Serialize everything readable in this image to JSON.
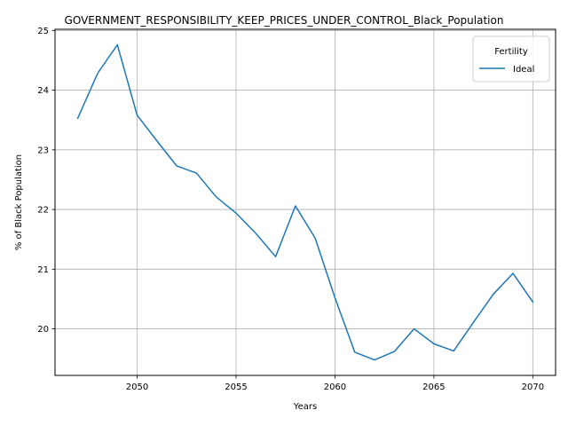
{
  "chart_data": {
    "type": "line",
    "title": "GOVERNMENT_RESPONSIBILITY_KEEP_PRICES_UNDER_CONTROL_Black_Population",
    "xlabel": "Years",
    "ylabel": "% of Black Population",
    "xlim": [
      2045.85,
      2071.15
    ],
    "ylim": [
      19.22,
      25.02
    ],
    "xticks": [
      2050,
      2055,
      2060,
      2065,
      2070
    ],
    "yticks": [
      20,
      21,
      22,
      23,
      24,
      25
    ],
    "grid": true,
    "legend": {
      "title": "Fertility",
      "position": "top-right"
    },
    "series": [
      {
        "name": "Ideal",
        "color": "#1f77b4",
        "x": [
          2047,
          2048,
          2049,
          2050,
          2051,
          2052,
          2053,
          2054,
          2055,
          2056,
          2057,
          2058,
          2059,
          2060,
          2061,
          2062,
          2063,
          2064,
          2065,
          2066,
          2067,
          2068,
          2069,
          2070
        ],
        "y": [
          23.53,
          24.28,
          24.76,
          23.58,
          23.15,
          22.73,
          22.61,
          22.21,
          21.94,
          21.6,
          21.21,
          22.06,
          21.52,
          20.52,
          19.61,
          19.48,
          19.62,
          20.0,
          19.75,
          19.63,
          20.11,
          20.58,
          20.93,
          20.45
        ]
      }
    ]
  }
}
